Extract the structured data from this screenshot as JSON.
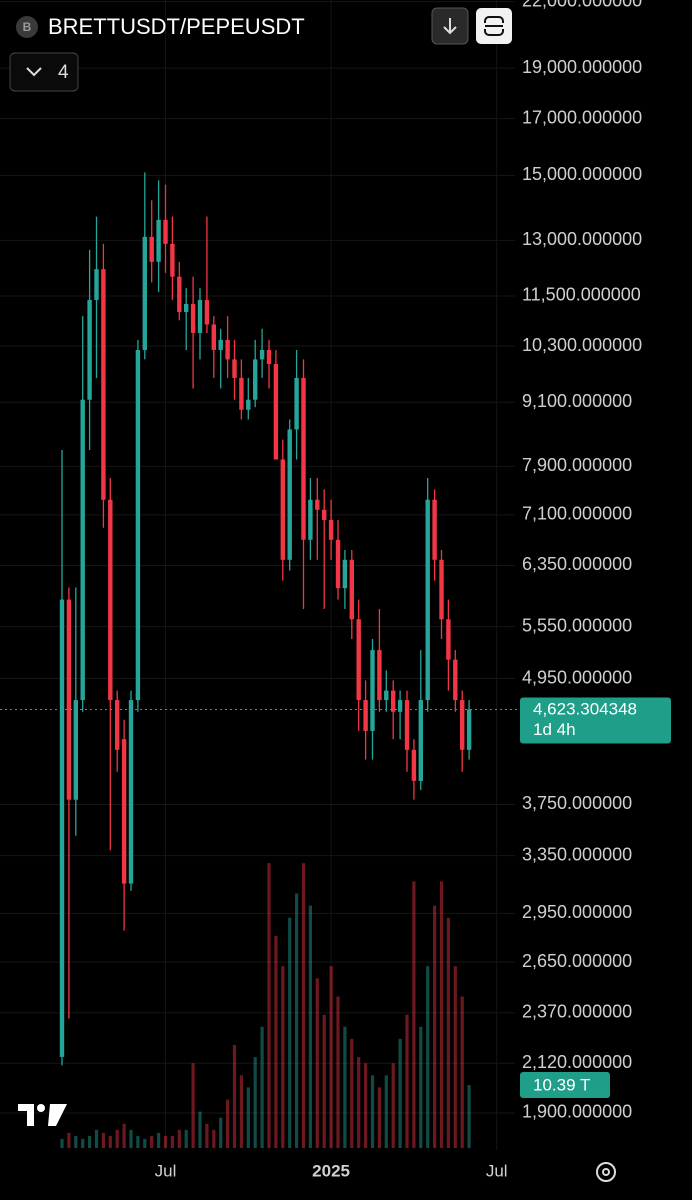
{
  "chart_data": {
    "type": "candlestick",
    "title": "BRETTUSDT/PEPEUSDT",
    "indicator_count": "4",
    "scale": "log",
    "grid": true,
    "up_color": "#26a69a",
    "down_color": "#f23645",
    "categories": [
      null,
      null,
      null,
      null,
      null,
      null,
      null,
      null,
      null,
      null,
      null,
      null,
      null,
      null,
      null,
      "Jul",
      null,
      null,
      null,
      null,
      null,
      null,
      null,
      null,
      null,
      null,
      null,
      null,
      null,
      null,
      null,
      null,
      null,
      null,
      null,
      null,
      null,
      null,
      null,
      "2025",
      null,
      null,
      null,
      null,
      null,
      null,
      null,
      null,
      null,
      null,
      null,
      null,
      null,
      null,
      null,
      null,
      null,
      null,
      null,
      null,
      null,
      null,
      null,
      "Jul"
    ],
    "open": [
      2150,
      5890,
      3790,
      4720,
      9150,
      11400,
      12200,
      7340,
      4720,
      4330,
      3150,
      4720,
      10210,
      13100,
      12400,
      13600,
      12900,
      12000,
      11100,
      11300,
      10600,
      11400,
      10800,
      10210,
      10440,
      10000,
      9600,
      8950,
      9150,
      10000,
      10210,
      9900,
      8020,
      6430,
      8570,
      9600,
      6720,
      7340,
      7180,
      7020,
      6720,
      6040,
      6430,
      5640,
      4720,
      4410,
      5270,
      4720,
      4820,
      4600,
      4720,
      4230,
      3950,
      4720,
      7340,
      6430,
      5640,
      5160,
      4720,
      4230,
      null,
      null,
      null,
      null
    ],
    "high": [
      8190,
      6050,
      6050,
      11000,
      12730,
      13700,
      12900,
      7700,
      4820,
      4520,
      4820,
      10440,
      15100,
      14200,
      14840,
      14700,
      13700,
      12400,
      11700,
      12000,
      11700,
      13700,
      11000,
      10700,
      11000,
      10440,
      10000,
      9600,
      10440,
      10700,
      10440,
      10210,
      8380,
      8760,
      10210,
      10000,
      7700,
      7700,
      7510,
      7340,
      7020,
      6570,
      6570,
      5890,
      4930,
      5400,
      5770,
      5040,
      4930,
      4820,
      4820,
      4330,
      5270,
      7700,
      7510,
      6570,
      5890,
      5270,
      4820,
      4720,
      null,
      null,
      null,
      null
    ],
    "low": [
      2110,
      2340,
      3500,
      4600,
      8190,
      9600,
      6900,
      3390,
      4030,
      2840,
      3100,
      4600,
      10000,
      11850,
      11600,
      12100,
      11400,
      10900,
      10210,
      9380,
      10000,
      10600,
      9600,
      9380,
      9600,
      9150,
      8760,
      8760,
      9000,
      9600,
      9380,
      8020,
      6140,
      6280,
      8020,
      5770,
      6430,
      6430,
      5770,
      6430,
      5890,
      5770,
      5400,
      4410,
      4140,
      4140,
      4600,
      4600,
      4330,
      4330,
      4030,
      3790,
      3870,
      4600,
      6140,
      5400,
      4820,
      4600,
      4030,
      4140,
      null,
      null,
      null,
      null
    ],
    "close": [
      5890,
      3790,
      4720,
      9150,
      11400,
      12200,
      7340,
      4720,
      4230,
      3150,
      4720,
      10210,
      13100,
      12400,
      13600,
      12900,
      12000,
      11100,
      11300,
      10600,
      11400,
      10800,
      10210,
      10440,
      10000,
      9600,
      8950,
      9150,
      10000,
      10210,
      9900,
      8020,
      6430,
      8570,
      9600,
      6720,
      7340,
      7180,
      7020,
      6720,
      6040,
      6430,
      5640,
      4720,
      4410,
      5270,
      4720,
      4820,
      4600,
      4720,
      4230,
      3950,
      4720,
      7340,
      6430,
      5640,
      5160,
      4720,
      4230,
      4623.304348,
      null,
      null,
      null,
      null
    ],
    "price_label": "4,623.304348",
    "countdown": "1d 4h",
    "volume": [
      1.5,
      2.5,
      2,
      1.5,
      2,
      3,
      2.5,
      2,
      3,
      4,
      3,
      2,
      1.5,
      2,
      2.5,
      2,
      2,
      3,
      3,
      14,
      6,
      4,
      3,
      5,
      8,
      17,
      12,
      10,
      15,
      20,
      47,
      35,
      30,
      38,
      42,
      47,
      40,
      28,
      22,
      30,
      25,
      20,
      18,
      15,
      14,
      12,
      10,
      12,
      14,
      18,
      22,
      44,
      20,
      30,
      40,
      44,
      38,
      30,
      25,
      10.39,
      null,
      null,
      null,
      null
    ],
    "volume_label": "10.39 T",
    "volume_ylim": [
      0,
      50
    ],
    "ylim": [
      1732,
      22080
    ],
    "yticks": [
      {
        "value": 22000,
        "label": "22,000.000000"
      },
      {
        "value": 19000,
        "label": "19,000.000000"
      },
      {
        "value": 17000,
        "label": "17,000.000000"
      },
      {
        "value": 15000,
        "label": "15,000.000000"
      },
      {
        "value": 13000,
        "label": "13,000.000000"
      },
      {
        "value": 11500,
        "label": "11,500.000000"
      },
      {
        "value": 10300,
        "label": "10,300.000000"
      },
      {
        "value": 9100,
        "label": "9,100.000000"
      },
      {
        "value": 7900,
        "label": "7,900.000000"
      },
      {
        "value": 7100,
        "label": "7,100.000000"
      },
      {
        "value": 6350,
        "label": "6,350.000000"
      },
      {
        "value": 5550,
        "label": "5,550.000000"
      },
      {
        "value": 4950,
        "label": "4,950.000000"
      },
      {
        "value": 3750,
        "label": "3,750.000000"
      },
      {
        "value": 3350,
        "label": "3,350.000000"
      },
      {
        "value": 2950,
        "label": "2,950.000000"
      },
      {
        "value": 2650,
        "label": "2,650.000000"
      },
      {
        "value": 2370,
        "label": "2,370.000000"
      },
      {
        "value": 2120,
        "label": "2,120.000000"
      },
      {
        "value": 1900,
        "label": "1,900.000000"
      }
    ]
  }
}
